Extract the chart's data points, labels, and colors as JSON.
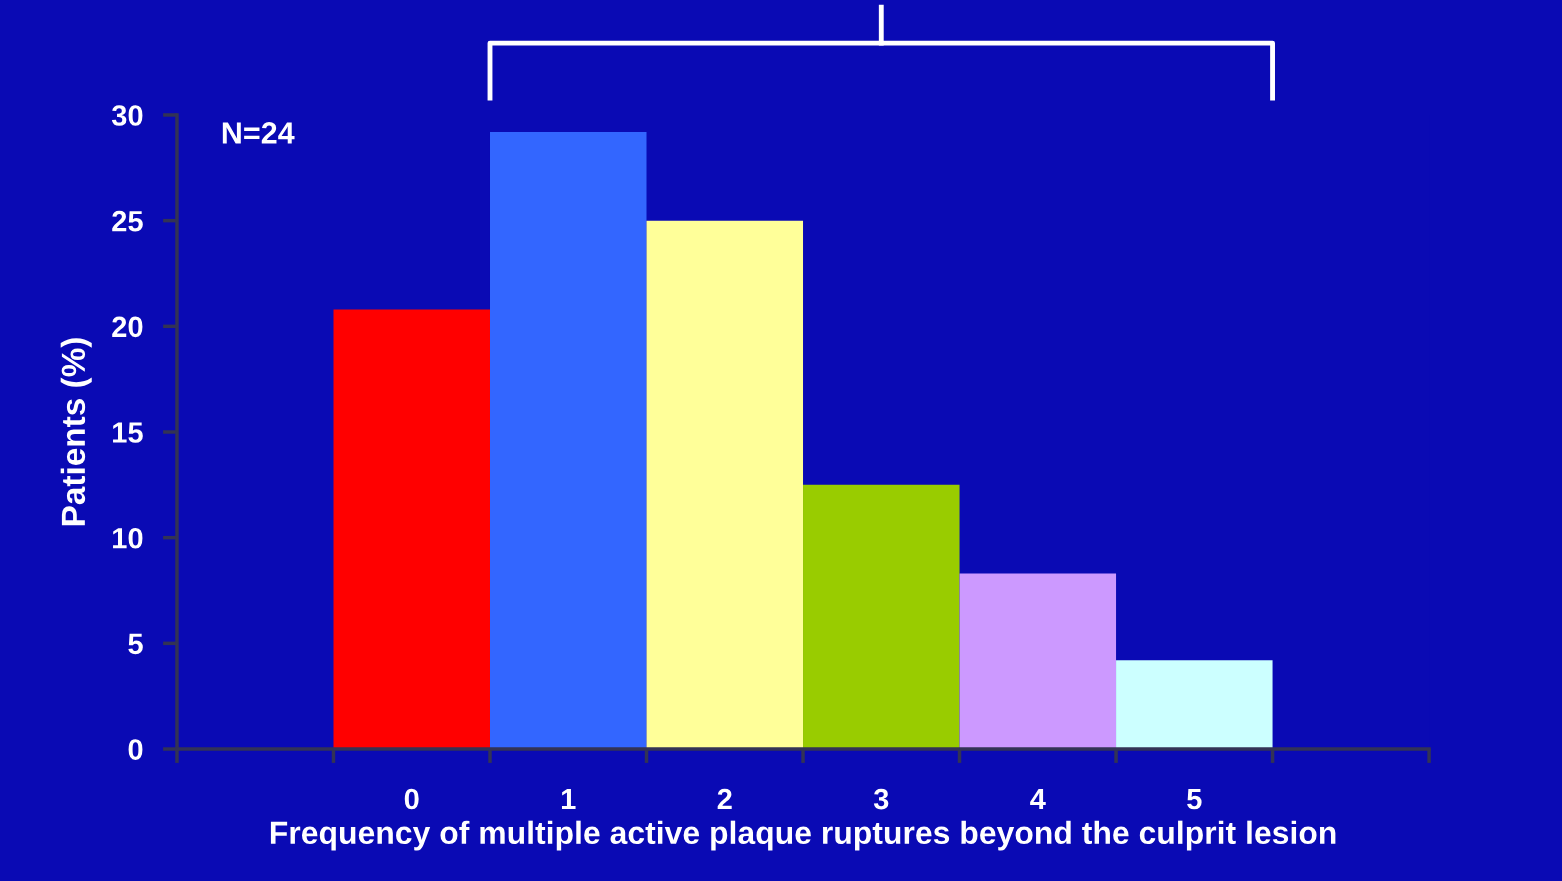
{
  "chart_data": {
    "type": "bar",
    "ylabel": "Patients (%)",
    "xlabel": "Frequency of multiple active plaque ruptures beyond the culprit lesion",
    "categories": [
      null,
      "0",
      "1",
      "2",
      "3",
      "4",
      "5",
      null
    ],
    "values": [
      null,
      20.8,
      29.2,
      25.0,
      12.5,
      8.3,
      4.2,
      null
    ],
    "colors": [
      "#ff0000",
      "#ff0000",
      "#3366ff",
      "#ffff99",
      "#99cc00",
      "#cc99ff",
      "#ccffff",
      "#ccffff"
    ],
    "ylim": [
      0,
      30
    ],
    "yticks": [
      0,
      5,
      10,
      15,
      20,
      25,
      30
    ],
    "grid": false,
    "legend": false,
    "annotations": [
      "N=24"
    ]
  }
}
